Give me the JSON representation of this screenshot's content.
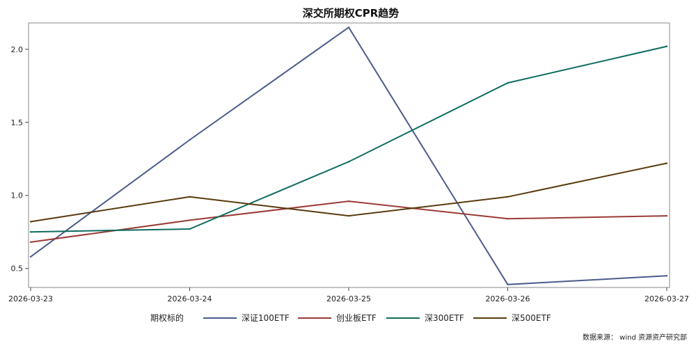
{
  "chart_data": {
    "type": "line",
    "title": "深交所期权CPR趋势",
    "xlabel": "",
    "ylabel": "",
    "x": [
      "2026-03-23",
      "2026-03-24",
      "2026-03-25",
      "2026-03-26",
      "2026-03-27"
    ],
    "yticks": [
      "0.5",
      "1.0",
      "1.5",
      "2.0"
    ],
    "ylim": [
      0.37,
      2.18
    ],
    "grid": false,
    "legend": {
      "title": "期权标的",
      "placement": "bottom-center"
    },
    "series": [
      {
        "name": "深证100ETF",
        "color": "#4a5a8c",
        "values": [
          0.58,
          1.38,
          2.15,
          0.39,
          0.45
        ]
      },
      {
        "name": "创业板ETF",
        "color": "#9a3a35",
        "values": [
          0.68,
          0.83,
          0.96,
          0.84,
          0.86
        ]
      },
      {
        "name": "深300ETF",
        "color": "#0e6b5e",
        "values": [
          0.75,
          0.77,
          1.23,
          1.77,
          2.02
        ]
      },
      {
        "name": "深500ETF",
        "color": "#5a3a0e",
        "values": [
          0.82,
          0.99,
          0.86,
          0.99,
          1.22
        ]
      }
    ],
    "source_note": "数据来源： wind  资源资产研究部"
  }
}
